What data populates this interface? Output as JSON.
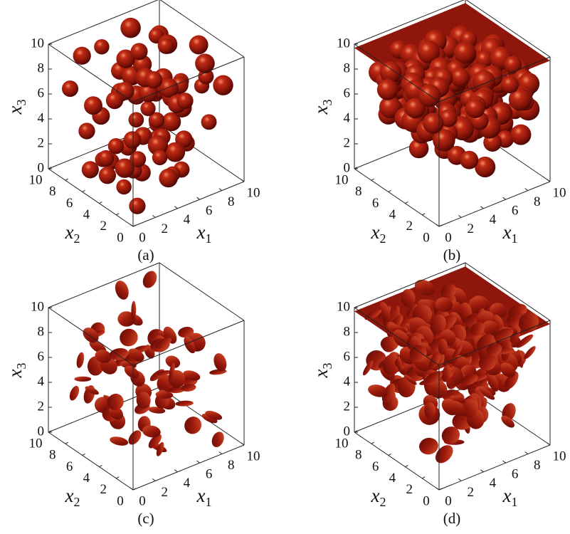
{
  "panels": [
    {
      "label": "(a)",
      "axis_symbol": "x",
      "x1_sub": "1",
      "x2_sub": "2",
      "x3_sub": "3",
      "x1_ticks": [
        0,
        2,
        4,
        6,
        8,
        10
      ],
      "x2_ticks": [
        0,
        2,
        4,
        6,
        8,
        10
      ],
      "x3_ticks": [
        0,
        2,
        4,
        6,
        8,
        10
      ]
    },
    {
      "label": "(b)",
      "axis_symbol": "x",
      "x1_sub": "1",
      "x2_sub": "2",
      "x3_sub": "3",
      "x1_ticks": [
        0,
        2,
        4,
        6,
        8,
        10
      ],
      "x2_ticks": [
        0,
        2,
        4,
        6,
        8,
        10
      ],
      "x3_ticks": [
        0,
        2,
        4,
        6,
        8,
        10
      ]
    },
    {
      "label": "(c)",
      "axis_symbol": "x",
      "x1_sub": "1",
      "x2_sub": "2",
      "x3_sub": "3",
      "x1_ticks": [
        0,
        2,
        4,
        6,
        8,
        10
      ],
      "x2_ticks": [
        0,
        2,
        4,
        6,
        8,
        10
      ],
      "x3_ticks": [
        0,
        2,
        4,
        6,
        8,
        10
      ]
    },
    {
      "label": "(d)",
      "axis_symbol": "x",
      "x1_sub": "1",
      "x2_sub": "2",
      "x3_sub": "3",
      "x1_ticks": [
        0,
        2,
        4,
        6,
        8,
        10
      ],
      "x2_ticks": [
        0,
        2,
        4,
        6,
        8,
        10
      ],
      "x3_ticks": [
        0,
        2,
        4,
        6,
        8,
        10
      ]
    }
  ]
}
